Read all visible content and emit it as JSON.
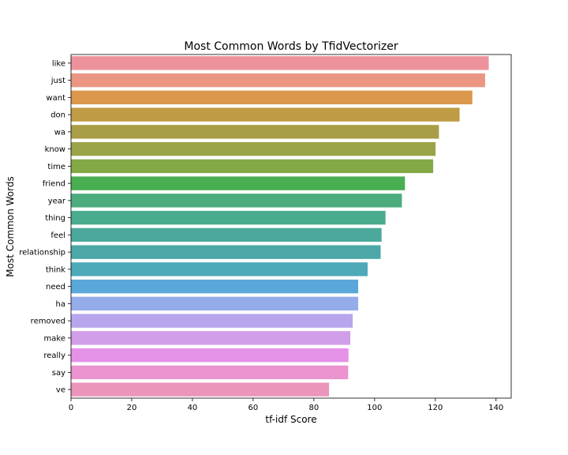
{
  "chart_data": {
    "type": "bar",
    "orientation": "horizontal",
    "title": "Most Common Words by TfidVectorizer",
    "xlabel": "tf-idf Score",
    "ylabel": "Most Common Words",
    "xlim": [
      0,
      145
    ],
    "xticks": [
      "0",
      "20",
      "40",
      "60",
      "80",
      "100",
      "120",
      "140"
    ],
    "grid": false,
    "categories": [
      "like",
      "just",
      "want",
      "don",
      "wa",
      "know",
      "time",
      "friend",
      "year",
      "thing",
      "feel",
      "relationship",
      "think",
      "need",
      "ha",
      "removed",
      "make",
      "really",
      "say",
      "ve"
    ],
    "values": [
      137.6,
      136.4,
      132.2,
      128.0,
      121.2,
      120.1,
      119.3,
      110.0,
      109.0,
      103.6,
      102.3,
      102.0,
      97.7,
      94.6,
      94.6,
      92.8,
      92.0,
      91.4,
      91.3,
      85.0
    ],
    "colors": [
      "#ed929b",
      "#ea9683",
      "#db974c",
      "#c09b45",
      "#a99e47",
      "#9aa347",
      "#82a945",
      "#48ae51",
      "#4bac7e",
      "#4bab8f",
      "#4ba99c",
      "#4ca8a6",
      "#4ea9b9",
      "#5aa8d9",
      "#94acea",
      "#b7a6ed",
      "#d19ee9",
      "#e691e8",
      "#ea93cf",
      "#eb95bb"
    ]
  }
}
